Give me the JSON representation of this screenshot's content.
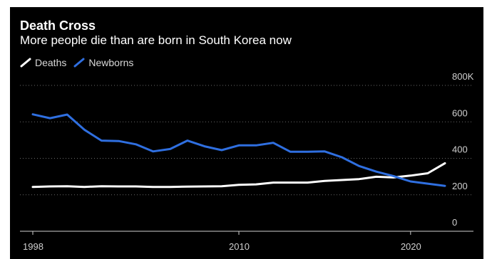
{
  "colors": {
    "background": "#000000",
    "deaths": "#ffffff",
    "newborns": "#2f6fe0",
    "grid": "#6a6a6a",
    "axis": "#cfcfcf"
  },
  "chart_data": {
    "type": "line",
    "title": "Death Cross",
    "subtitle": "More people die than are born in South Korea now",
    "xlabel": "",
    "ylabel": "",
    "legend_position": "top-left",
    "grid": true,
    "xlim": [
      1998,
      2022
    ],
    "ylim": [
      0,
      800
    ],
    "x_ticks": [
      1998,
      2010,
      2020
    ],
    "x_tick_labels": [
      "1998",
      "2010",
      "2020"
    ],
    "y_ticks": [
      0,
      200,
      400,
      600,
      800
    ],
    "y_tick_labels": [
      "0",
      "200",
      "400",
      "600",
      "800K"
    ],
    "x": [
      1998,
      1999,
      2000,
      2001,
      2002,
      2003,
      2004,
      2005,
      2006,
      2007,
      2008,
      2009,
      2010,
      2011,
      2012,
      2013,
      2014,
      2015,
      2016,
      2017,
      2018,
      2019,
      2020,
      2021,
      2022
    ],
    "series": [
      {
        "name": "Deaths",
        "color": "#ffffff",
        "values": [
          243,
          246,
          247,
          243,
          247,
          246,
          246,
          243,
          243,
          245,
          246,
          247,
          255,
          257,
          267,
          267,
          267,
          276,
          281,
          286,
          299,
          295,
          305,
          318,
          373
        ]
      },
      {
        "name": "Newborns",
        "color": "#2f6fe0",
        "values": [
          641,
          620,
          640,
          557,
          497,
          495,
          477,
          438,
          451,
          497,
          466,
          445,
          471,
          471,
          485,
          436,
          436,
          438,
          406,
          358,
          327,
          303,
          273,
          261,
          249
        ]
      }
    ]
  }
}
